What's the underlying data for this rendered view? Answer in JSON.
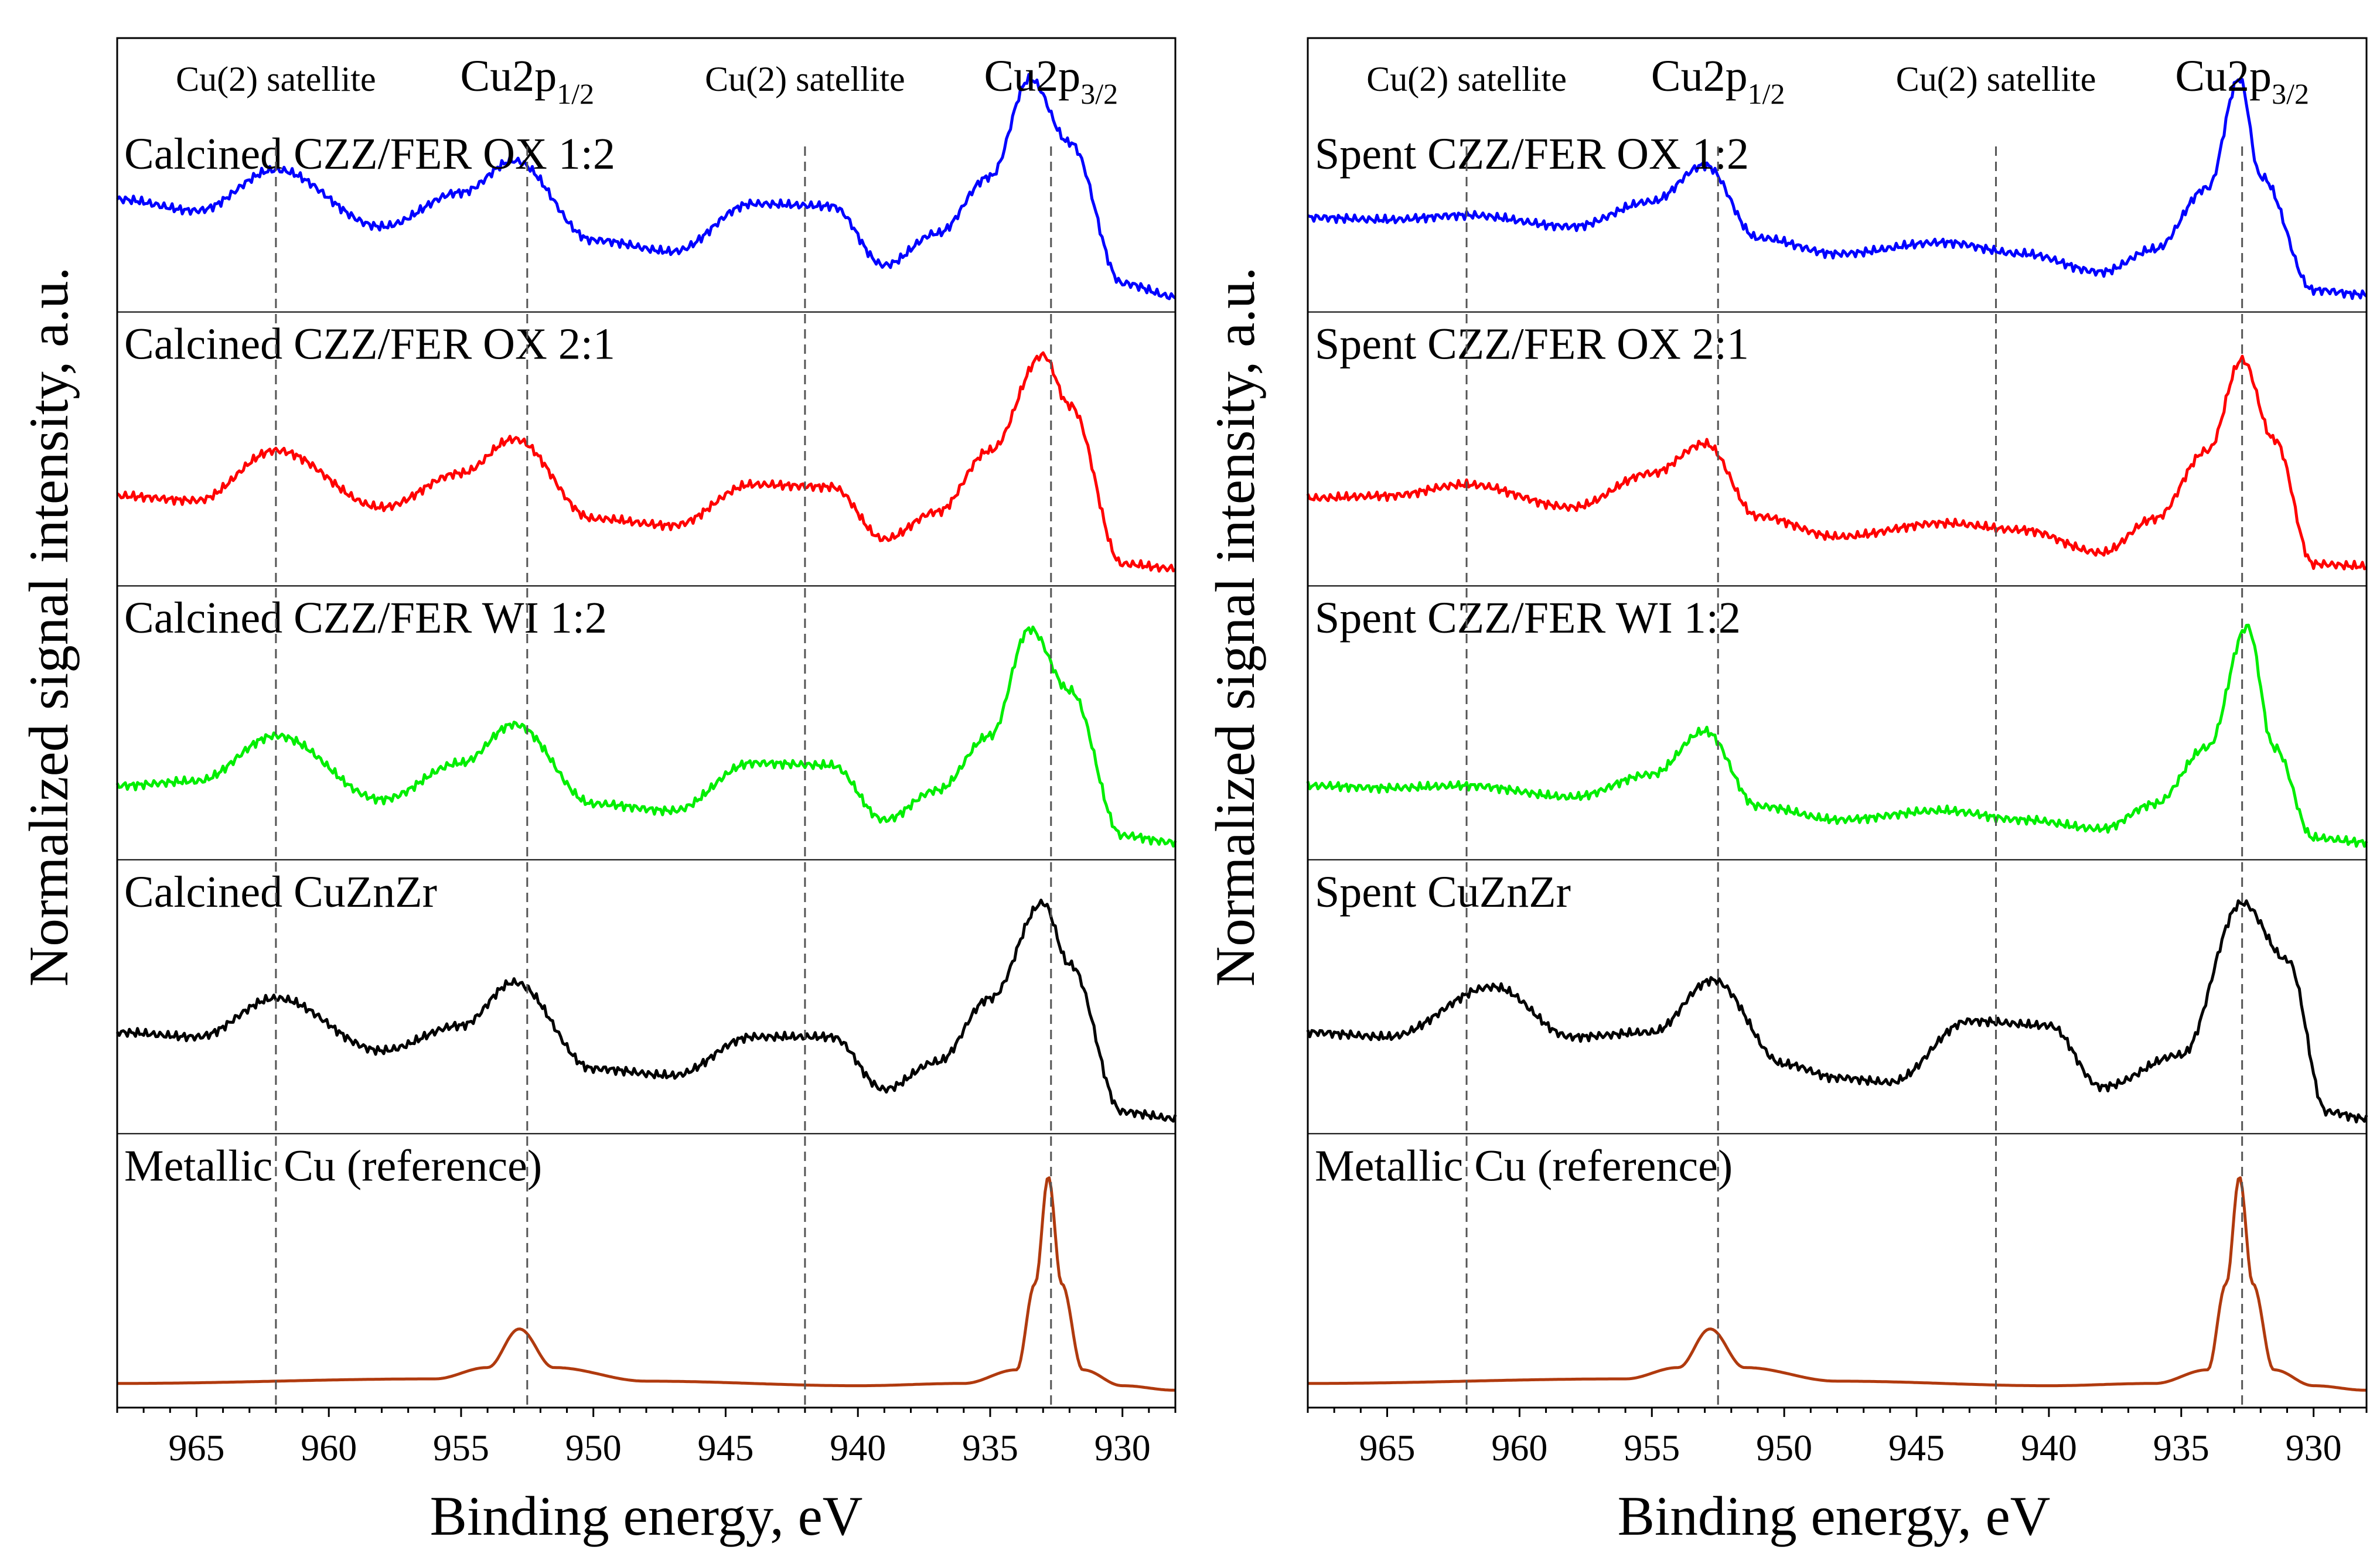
{
  "chart_data": [
    {
      "type": "line",
      "name": "calcined",
      "ylabel": "Normalized signal intensity, a.u.",
      "xlabel": "Binding energy, eV",
      "xlim": [
        968,
        928
      ],
      "xticks": [
        965,
        960,
        955,
        950,
        945,
        940,
        935,
        930
      ],
      "reference_lines": [
        {
          "x": 962,
          "label": "Cu(2) satellite"
        },
        {
          "x": 952.5,
          "label": "Cu2p",
          "sub": "1/2"
        },
        {
          "x": 942,
          "label": "Cu(2) satellite"
        },
        {
          "x": 932.7,
          "label": "Cu2p",
          "sub": "3/2"
        }
      ],
      "panels": [
        {
          "label": "Calcined CZZ/FER OX 1:2",
          "color": "#0000ff",
          "x": [
            968,
            965,
            962,
            958,
            955,
            953,
            950,
            947,
            944,
            941,
            939,
            937,
            935,
            933.5,
            932,
            930,
            928
          ],
          "y": [
            0.45,
            0.4,
            0.58,
            0.33,
            0.48,
            0.62,
            0.27,
            0.22,
            0.43,
            0.42,
            0.16,
            0.3,
            0.55,
            0.98,
            0.7,
            0.08,
            0.02
          ]
        },
        {
          "label": "Calcined CZZ/FER OX 2:1",
          "color": "#ff0000",
          "x": [
            968,
            965,
            962,
            958,
            955,
            953,
            950,
            947,
            944,
            941,
            939,
            937,
            935,
            933,
            932,
            930,
            928
          ],
          "y": [
            0.35,
            0.33,
            0.55,
            0.3,
            0.45,
            0.6,
            0.25,
            0.22,
            0.4,
            0.39,
            0.16,
            0.28,
            0.55,
            0.97,
            0.75,
            0.05,
            0.03
          ]
        },
        {
          "label": "Calcined CZZ/FER WI 1:2",
          "color": "#00ee00",
          "x": [
            968,
            965,
            962,
            958,
            955,
            953,
            950,
            947,
            944,
            941,
            939,
            937,
            935,
            933.5,
            932,
            930,
            928
          ],
          "y": [
            0.28,
            0.3,
            0.5,
            0.22,
            0.38,
            0.55,
            0.2,
            0.17,
            0.38,
            0.37,
            0.13,
            0.26,
            0.5,
            0.97,
            0.7,
            0.06,
            0.03
          ]
        },
        {
          "label": "Calcined CuZnZr",
          "color": "#000000",
          "x": [
            968,
            965,
            962,
            958,
            955,
            953,
            950,
            947,
            944,
            941,
            939,
            937,
            935,
            933,
            932,
            930,
            928
          ],
          "y": [
            0.4,
            0.38,
            0.55,
            0.32,
            0.43,
            0.62,
            0.24,
            0.21,
            0.38,
            0.38,
            0.15,
            0.27,
            0.55,
            0.97,
            0.7,
            0.05,
            0.02
          ]
        },
        {
          "label": "Metallic Cu (reference)",
          "color": "#b03a0e",
          "x": [
            968,
            956,
            954,
            952.8,
            951.5,
            948,
            940,
            936,
            934,
            933.3,
            932.8,
            932.3,
            931.5,
            930,
            928
          ],
          "y": [
            0.06,
            0.08,
            0.13,
            0.3,
            0.13,
            0.07,
            0.05,
            0.06,
            0.12,
            0.5,
            0.97,
            0.5,
            0.12,
            0.05,
            0.03
          ]
        }
      ]
    },
    {
      "type": "line",
      "name": "spent",
      "ylabel": "Normalized signal intensity, a.u.",
      "xlabel": "Binding energy, eV",
      "xlim": [
        968,
        928
      ],
      "xticks": [
        965,
        960,
        955,
        950,
        945,
        940,
        935,
        930
      ],
      "reference_lines": [
        {
          "x": 962,
          "label": "Cu(2) satellite"
        },
        {
          "x": 952.5,
          "label": "Cu2p",
          "sub": "1/2"
        },
        {
          "x": 942,
          "label": "Cu(2) satellite"
        },
        {
          "x": 932.7,
          "label": "Cu2p",
          "sub": "3/2"
        }
      ],
      "panels": [
        {
          "label": "Spent CZZ/FER OX 1:2",
          "color": "#0000ff",
          "x": [
            968,
            965,
            962,
            958,
            955,
            953,
            951,
            948,
            944,
            941,
            938,
            936,
            934,
            932.8,
            932,
            930,
            928
          ],
          "y": [
            0.37,
            0.36,
            0.38,
            0.33,
            0.44,
            0.6,
            0.28,
            0.21,
            0.26,
            0.21,
            0.13,
            0.23,
            0.5,
            0.98,
            0.55,
            0.05,
            0.03
          ]
        },
        {
          "label": "Spent CZZ/FER OX 2:1",
          "color": "#ff0000",
          "x": [
            968,
            965,
            962,
            958,
            955,
            953,
            951,
            948,
            944,
            941,
            938,
            936,
            934,
            932.7,
            931.5,
            930,
            928
          ],
          "y": [
            0.34,
            0.35,
            0.4,
            0.3,
            0.45,
            0.58,
            0.26,
            0.17,
            0.23,
            0.2,
            0.1,
            0.25,
            0.55,
            0.95,
            0.6,
            0.05,
            0.04
          ]
        },
        {
          "label": "Spent CZZ/FER WI 1:2",
          "color": "#00ee00",
          "x": [
            968,
            965,
            962,
            958,
            955,
            953,
            951,
            948,
            944,
            941,
            938,
            936,
            934,
            932.5,
            931.5,
            930,
            928
          ],
          "y": [
            0.28,
            0.27,
            0.28,
            0.23,
            0.33,
            0.52,
            0.19,
            0.13,
            0.17,
            0.13,
            0.09,
            0.2,
            0.45,
            0.98,
            0.45,
            0.05,
            0.03
          ]
        },
        {
          "label": "Spent CuZnZr",
          "color": "#000000",
          "x": [
            968,
            965,
            961,
            958,
            955,
            952.7,
            950,
            948,
            946,
            943,
            940,
            938,
            935,
            932.7,
            931,
            929.5,
            928
          ],
          "y": [
            0.4,
            0.38,
            0.6,
            0.38,
            0.4,
            0.63,
            0.26,
            0.2,
            0.18,
            0.45,
            0.43,
            0.16,
            0.3,
            0.97,
            0.72,
            0.05,
            0.02
          ]
        },
        {
          "label": "Metallic Cu (reference)",
          "color": "#b03a0e",
          "x": [
            968,
            956,
            954,
            952.8,
            951.5,
            948,
            940,
            936,
            934,
            933.3,
            932.8,
            932.3,
            931.5,
            930,
            928
          ],
          "y": [
            0.06,
            0.08,
            0.13,
            0.3,
            0.13,
            0.07,
            0.05,
            0.06,
            0.12,
            0.5,
            0.97,
            0.5,
            0.12,
            0.05,
            0.03
          ]
        }
      ]
    }
  ]
}
